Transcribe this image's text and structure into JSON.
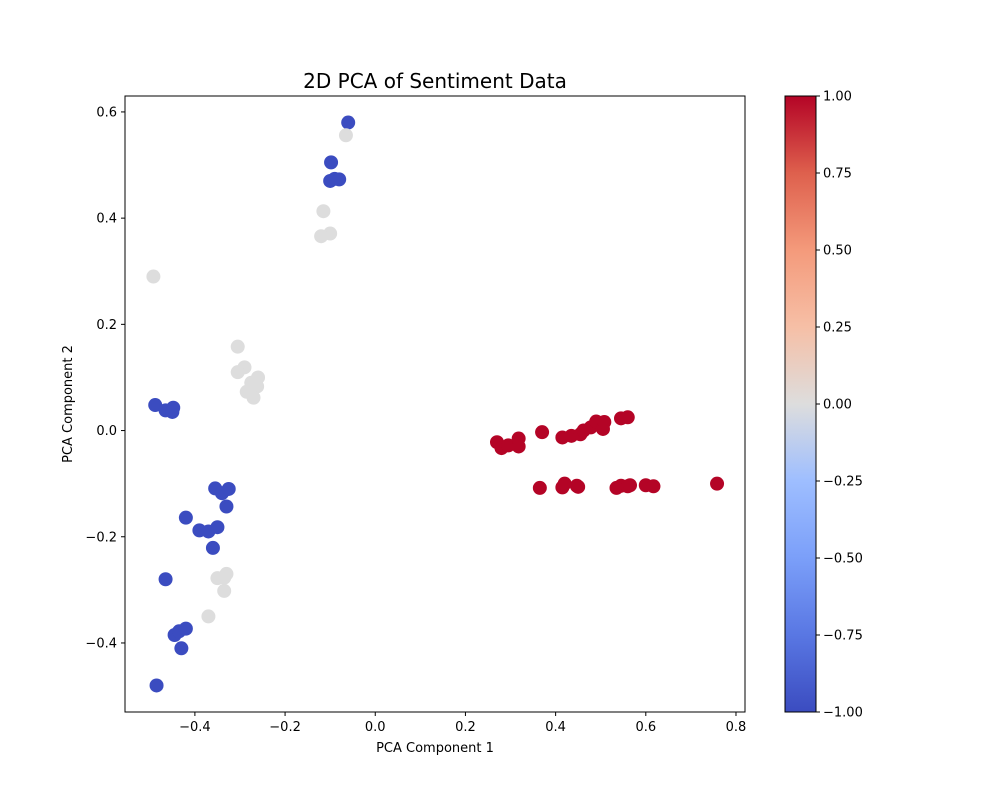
{
  "chart_data": {
    "type": "scatter",
    "title": "2D PCA of Sentiment Data",
    "xlabel": "PCA Component 1",
    "ylabel": "PCA Component 2",
    "xlim": [
      -0.555,
      0.82
    ],
    "ylim": [
      -0.53,
      0.63
    ],
    "xticks": [
      -0.4,
      -0.2,
      0.0,
      0.2,
      0.4,
      0.6,
      0.8
    ],
    "xtick_labels": [
      "−0.4",
      "−0.2",
      "0.0",
      "0.2",
      "0.4",
      "0.6",
      "0.8"
    ],
    "yticks": [
      -0.4,
      -0.2,
      0.0,
      0.2,
      0.4,
      0.6
    ],
    "ytick_labels": [
      "−0.4",
      "−0.2",
      "0.0",
      "0.2",
      "0.4",
      "0.6"
    ],
    "colormap": "coolwarm",
    "colorbar": {
      "range": [
        -1.0,
        1.0
      ],
      "ticks": [
        1.0,
        0.75,
        0.5,
        0.25,
        0.0,
        -0.25,
        -0.5,
        -0.75,
        -1.0
      ],
      "tick_labels": [
        "1.00",
        "0.75",
        "0.50",
        "0.25",
        "0.00",
        "−0.25",
        "−0.50",
        "−0.75",
        "−1.00"
      ]
    },
    "colors": {
      "-1": "#3b4cc0",
      "0": "#dddddd",
      "1": "#b40426"
    },
    "points": [
      {
        "x": -0.06,
        "y": 0.58,
        "c": -1
      },
      {
        "x": -0.065,
        "y": 0.556,
        "c": 0
      },
      {
        "x": -0.098,
        "y": 0.505,
        "c": -1
      },
      {
        "x": -0.1,
        "y": 0.47,
        "c": -1
      },
      {
        "x": -0.09,
        "y": 0.474,
        "c": -1
      },
      {
        "x": -0.08,
        "y": 0.473,
        "c": -1
      },
      {
        "x": -0.115,
        "y": 0.413,
        "c": 0
      },
      {
        "x": -0.1,
        "y": 0.371,
        "c": 0
      },
      {
        "x": -0.12,
        "y": 0.366,
        "c": 0
      },
      {
        "x": -0.492,
        "y": 0.29,
        "c": 0
      },
      {
        "x": -0.305,
        "y": 0.158,
        "c": 0
      },
      {
        "x": -0.29,
        "y": 0.119,
        "c": 0
      },
      {
        "x": -0.305,
        "y": 0.11,
        "c": 0
      },
      {
        "x": -0.26,
        "y": 0.1,
        "c": 0
      },
      {
        "x": -0.275,
        "y": 0.09,
        "c": 0
      },
      {
        "x": -0.262,
        "y": 0.083,
        "c": 0
      },
      {
        "x": -0.285,
        "y": 0.073,
        "c": 0
      },
      {
        "x": -0.27,
        "y": 0.062,
        "c": 0
      },
      {
        "x": -0.488,
        "y": 0.048,
        "c": -1
      },
      {
        "x": -0.465,
        "y": 0.038,
        "c": -1
      },
      {
        "x": -0.448,
        "y": 0.043,
        "c": -1
      },
      {
        "x": -0.45,
        "y": 0.035,
        "c": -1
      },
      {
        "x": -0.355,
        "y": -0.109,
        "c": -1
      },
      {
        "x": -0.34,
        "y": -0.118,
        "c": -1
      },
      {
        "x": -0.325,
        "y": -0.11,
        "c": -1
      },
      {
        "x": -0.33,
        "y": -0.143,
        "c": -1
      },
      {
        "x": -0.42,
        "y": -0.164,
        "c": -1
      },
      {
        "x": -0.39,
        "y": -0.188,
        "c": -1
      },
      {
        "x": -0.37,
        "y": -0.19,
        "c": -1
      },
      {
        "x": -0.35,
        "y": -0.182,
        "c": -1
      },
      {
        "x": -0.36,
        "y": -0.221,
        "c": -1
      },
      {
        "x": -0.35,
        "y": -0.278,
        "c": 0
      },
      {
        "x": -0.335,
        "y": -0.277,
        "c": 0
      },
      {
        "x": -0.33,
        "y": -0.27,
        "c": 0
      },
      {
        "x": -0.335,
        "y": -0.302,
        "c": 0
      },
      {
        "x": -0.465,
        "y": -0.28,
        "c": -1
      },
      {
        "x": -0.37,
        "y": -0.35,
        "c": 0
      },
      {
        "x": -0.445,
        "y": -0.385,
        "c": -1
      },
      {
        "x": -0.435,
        "y": -0.378,
        "c": -1
      },
      {
        "x": -0.42,
        "y": -0.373,
        "c": -1
      },
      {
        "x": -0.43,
        "y": -0.41,
        "c": -1
      },
      {
        "x": -0.485,
        "y": -0.48,
        "c": -1
      },
      {
        "x": 0.27,
        "y": -0.022,
        "c": 1
      },
      {
        "x": 0.28,
        "y": -0.033,
        "c": 1
      },
      {
        "x": 0.295,
        "y": -0.028,
        "c": 1
      },
      {
        "x": 0.318,
        "y": -0.03,
        "c": 1
      },
      {
        "x": 0.318,
        "y": -0.015,
        "c": 1
      },
      {
        "x": 0.37,
        "y": -0.003,
        "c": 1
      },
      {
        "x": 0.415,
        "y": -0.013,
        "c": 1
      },
      {
        "x": 0.435,
        "y": -0.01,
        "c": 1
      },
      {
        "x": 0.455,
        "y": -0.007,
        "c": 1
      },
      {
        "x": 0.462,
        "y": 0.0,
        "c": 1
      },
      {
        "x": 0.478,
        "y": 0.006,
        "c": 1
      },
      {
        "x": 0.49,
        "y": 0.017,
        "c": 1
      },
      {
        "x": 0.505,
        "y": 0.003,
        "c": 1
      },
      {
        "x": 0.508,
        "y": 0.016,
        "c": 1
      },
      {
        "x": 0.545,
        "y": 0.023,
        "c": 1
      },
      {
        "x": 0.56,
        "y": 0.025,
        "c": 1
      },
      {
        "x": 0.365,
        "y": -0.108,
        "c": 1
      },
      {
        "x": 0.415,
        "y": -0.107,
        "c": 1
      },
      {
        "x": 0.42,
        "y": -0.1,
        "c": 1
      },
      {
        "x": 0.447,
        "y": -0.104,
        "c": 1
      },
      {
        "x": 0.45,
        "y": -0.106,
        "c": 1
      },
      {
        "x": 0.535,
        "y": -0.108,
        "c": 1
      },
      {
        "x": 0.545,
        "y": -0.104,
        "c": 1
      },
      {
        "x": 0.56,
        "y": -0.105,
        "c": 1
      },
      {
        "x": 0.565,
        "y": -0.103,
        "c": 1
      },
      {
        "x": 0.6,
        "y": -0.103,
        "c": 1
      },
      {
        "x": 0.617,
        "y": -0.105,
        "c": 1
      },
      {
        "x": 0.758,
        "y": -0.1,
        "c": 1
      }
    ]
  }
}
